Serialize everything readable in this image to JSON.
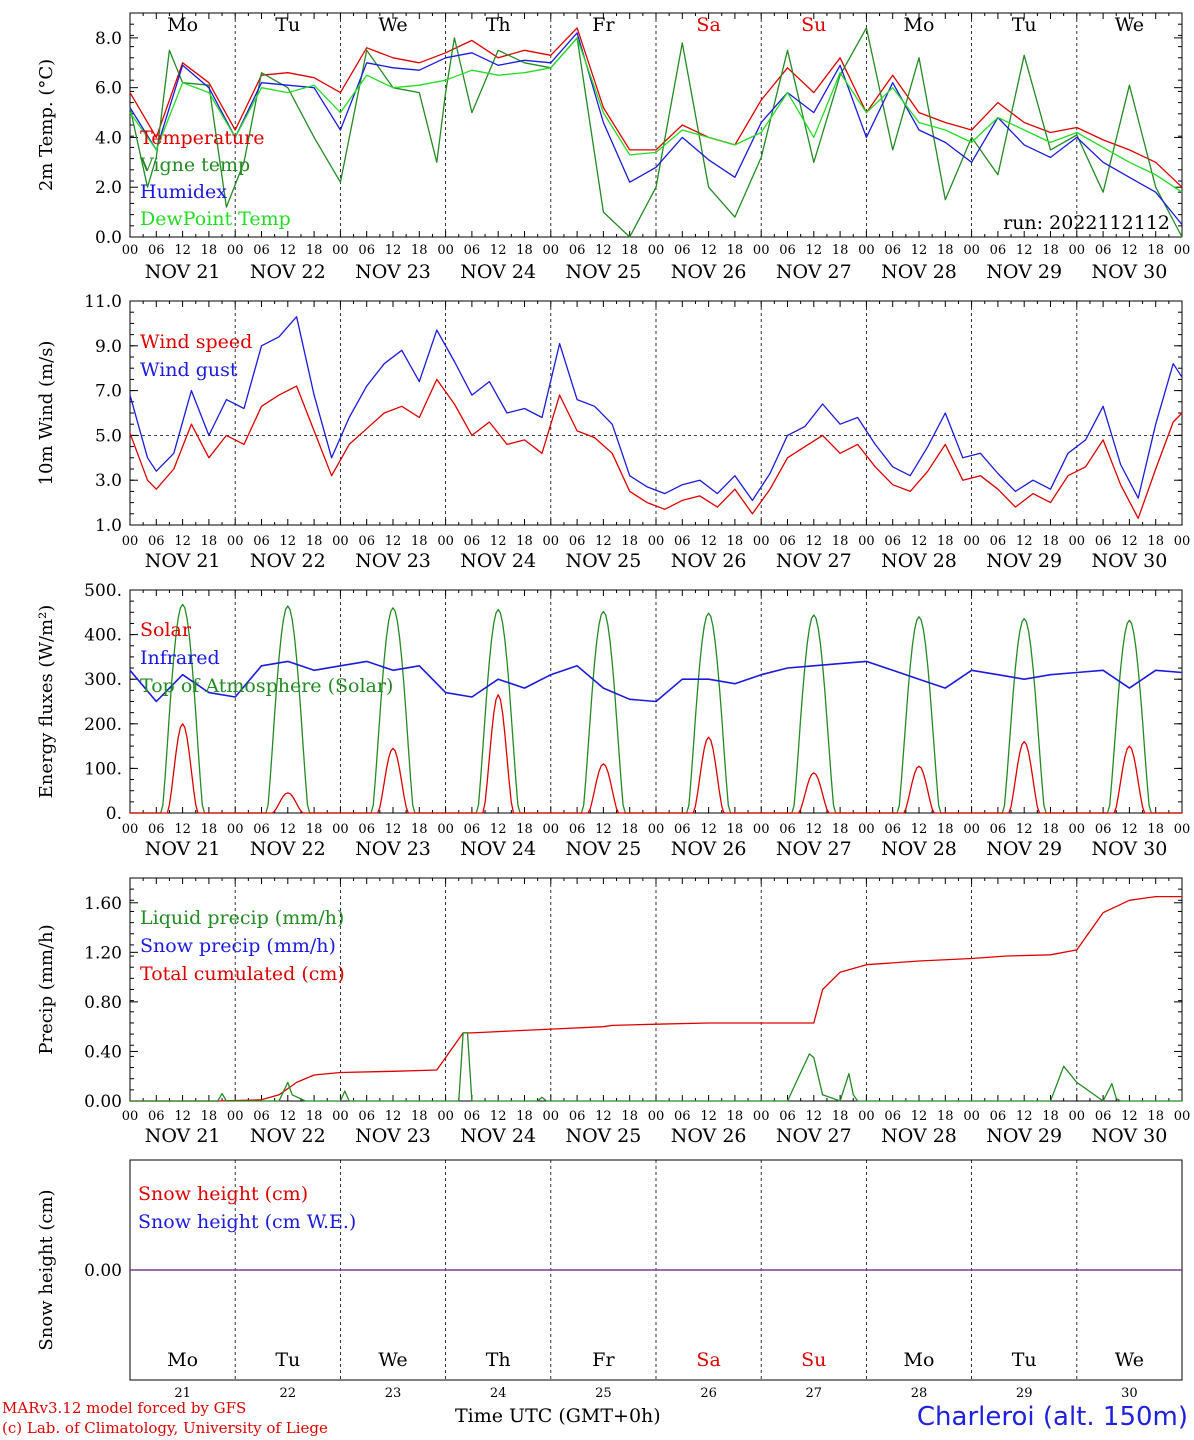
{
  "days": {
    "abbr": [
      "Mo",
      "Tu",
      "We",
      "Th",
      "Fr",
      "Sa",
      "Su",
      "Mo",
      "Tu",
      "We"
    ],
    "weekend": [
      false,
      false,
      false,
      false,
      false,
      true,
      true,
      false,
      false,
      false
    ],
    "dates": [
      "NOV 21",
      "NOV 22",
      "NOV 23",
      "NOV 24",
      "NOV 25",
      "NOV 26",
      "NOV 27",
      "NOV 28",
      "NOV 29",
      "NOV 30"
    ],
    "numbers": [
      "21",
      "22",
      "23",
      "24",
      "25",
      "26",
      "27",
      "28",
      "29",
      "30"
    ],
    "hour_ticks": [
      "00",
      "06",
      "12",
      "18"
    ]
  },
  "colors": {
    "red": "#e00000",
    "green": "#228b22",
    "blue": "#1a1ae0",
    "lightgreen": "#22dd22",
    "purple": "#7a3a9a",
    "weekend": "#e00000"
  },
  "run_label": "run: 2022112112",
  "footer": {
    "model": "MARv3.12 model forced by GFS",
    "copyright": "(c) Lab. of Climatology, University of Liege",
    "time_axis": "Time UTC (GMT+0h)",
    "station": "Charleroi (alt. 150m)"
  },
  "chart_data": [
    {
      "type": "line",
      "ylabel": "2m Temp. (°C)",
      "ylim": [
        0,
        9
      ],
      "yticks": [
        "0.0",
        "2.0",
        "4.0",
        "6.0",
        "8.0"
      ],
      "x_unit": "hours since NOV 21 00 UTC",
      "legend": [
        "Temperature",
        "Vigne temp",
        "Humidex",
        "DewPoint Temp"
      ],
      "series": [
        {
          "name": "Temperature",
          "color": "red",
          "x": [
            0,
            6,
            12,
            18,
            24,
            30,
            36,
            42,
            48,
            54,
            60,
            66,
            72,
            78,
            84,
            90,
            96,
            102,
            108,
            114,
            120,
            126,
            132,
            138,
            144,
            150,
            156,
            162,
            168,
            174,
            180,
            186,
            192,
            198,
            204,
            210,
            216,
            222,
            228,
            234,
            240
          ],
          "y": [
            5.8,
            4.0,
            7.0,
            6.2,
            4.3,
            6.5,
            6.6,
            6.4,
            5.8,
            7.6,
            7.2,
            7.0,
            7.4,
            7.9,
            7.2,
            7.5,
            7.3,
            8.4,
            5.2,
            3.5,
            3.5,
            4.5,
            4.0,
            3.7,
            5.5,
            6.8,
            5.8,
            7.2,
            5.0,
            6.5,
            5.0,
            4.6,
            4.3,
            5.4,
            4.6,
            4.2,
            4.4,
            3.9,
            3.5,
            3.0,
            2.0
          ]
        },
        {
          "name": "Vigne temp",
          "color": "green",
          "x": [
            0,
            4,
            6,
            9,
            12,
            18,
            22,
            26,
            30,
            36,
            42,
            48,
            54,
            60,
            66,
            70,
            72,
            74,
            78,
            84,
            90,
            96,
            102,
            108,
            114,
            120,
            126,
            132,
            138,
            144,
            150,
            156,
            162,
            168,
            174,
            180,
            186,
            192,
            198,
            204,
            210,
            216,
            222,
            228,
            234,
            240
          ],
          "y": [
            5.2,
            2.0,
            3.2,
            7.5,
            6.2,
            6.1,
            1.2,
            3.0,
            6.6,
            6.0,
            4.0,
            2.2,
            7.5,
            6.0,
            5.8,
            3.0,
            5.8,
            8.0,
            5.0,
            7.5,
            7.0,
            6.8,
            8.0,
            1.0,
            -0.5,
            2.0,
            7.8,
            2.0,
            0.8,
            3.2,
            7.5,
            3.0,
            6.5,
            8.4,
            3.5,
            7.2,
            1.5,
            4.0,
            2.5,
            7.3,
            3.5,
            4.1,
            1.8,
            6.1,
            2.0,
            0.0
          ]
        },
        {
          "name": "Humidex",
          "color": "blue",
          "x": [
            0,
            6,
            12,
            18,
            24,
            30,
            36,
            42,
            48,
            54,
            60,
            66,
            72,
            78,
            84,
            90,
            96,
            102,
            108,
            114,
            120,
            126,
            132,
            138,
            144,
            150,
            156,
            162,
            168,
            174,
            180,
            186,
            192,
            198,
            204,
            210,
            216,
            222,
            228,
            234,
            240
          ],
          "y": [
            5.2,
            3.5,
            6.9,
            6.0,
            4.0,
            6.2,
            6.1,
            6.0,
            4.3,
            7.0,
            6.8,
            6.7,
            7.2,
            7.4,
            6.9,
            7.1,
            7.0,
            8.2,
            4.6,
            2.2,
            2.8,
            4.0,
            3.1,
            2.4,
            4.6,
            5.8,
            5.0,
            6.9,
            4.0,
            6.2,
            4.3,
            3.8,
            3.0,
            4.8,
            3.7,
            3.2,
            4.0,
            3.0,
            2.4,
            1.8,
            0.5
          ]
        },
        {
          "name": "DewPoint Temp",
          "color": "lightgreen",
          "x": [
            0,
            6,
            12,
            18,
            24,
            30,
            36,
            42,
            48,
            54,
            60,
            66,
            72,
            78,
            84,
            90,
            96,
            102,
            108,
            114,
            120,
            126,
            132,
            138,
            144,
            150,
            156,
            162,
            168,
            174,
            180,
            186,
            192,
            198,
            204,
            210,
            216,
            222,
            228,
            234,
            240
          ],
          "y": [
            5.0,
            3.5,
            6.2,
            5.8,
            4.0,
            6.0,
            5.8,
            6.1,
            5.0,
            6.5,
            6.0,
            6.1,
            6.3,
            6.7,
            6.5,
            6.6,
            6.8,
            8.0,
            5.0,
            3.3,
            3.4,
            4.3,
            4.0,
            3.7,
            4.2,
            5.8,
            4.0,
            6.6,
            5.0,
            6.0,
            4.6,
            4.3,
            3.8,
            4.8,
            4.3,
            3.8,
            4.2,
            3.6,
            3.0,
            2.5,
            1.8
          ]
        }
      ]
    },
    {
      "type": "line",
      "ylabel": "10m Wind (m/s)",
      "ylim": [
        1,
        11
      ],
      "yticks": [
        "1.0",
        "3.0",
        "5.0",
        "7.0",
        "9.0",
        "11.0"
      ],
      "reference_line": 5.0,
      "legend": [
        "Wind speed",
        "Wind gust"
      ],
      "series": [
        {
          "name": "Wind speed",
          "color": "red",
          "x": [
            0,
            4,
            6,
            10,
            14,
            18,
            22,
            26,
            30,
            34,
            38,
            42,
            46,
            50,
            54,
            58,
            62,
            66,
            70,
            74,
            78,
            82,
            86,
            90,
            94,
            98,
            102,
            106,
            110,
            114,
            118,
            122,
            126,
            130,
            134,
            138,
            142,
            146,
            150,
            154,
            158,
            162,
            166,
            170,
            174,
            178,
            182,
            186,
            190,
            194,
            198,
            202,
            206,
            210,
            214,
            218,
            222,
            226,
            230,
            234,
            238,
            240
          ],
          "y": [
            5.1,
            3.0,
            2.6,
            3.5,
            5.5,
            4.0,
            5.0,
            4.6,
            6.3,
            6.8,
            7.2,
            5.2,
            3.2,
            4.6,
            5.3,
            6.0,
            6.3,
            5.8,
            7.5,
            6.4,
            5.0,
            5.6,
            4.6,
            4.8,
            4.2,
            6.8,
            5.2,
            4.9,
            4.2,
            2.5,
            2.0,
            1.7,
            2.1,
            2.3,
            1.8,
            2.6,
            1.5,
            2.6,
            4.0,
            4.5,
            5.0,
            4.2,
            4.6,
            3.6,
            2.8,
            2.5,
            3.4,
            4.6,
            3.0,
            3.2,
            2.6,
            1.8,
            2.4,
            2.0,
            3.2,
            3.6,
            4.8,
            2.8,
            1.3,
            3.5,
            5.6,
            6.0
          ]
        },
        {
          "name": "Wind gust",
          "color": "blue",
          "x": [
            0,
            4,
            6,
            10,
            14,
            18,
            22,
            26,
            30,
            34,
            38,
            42,
            46,
            50,
            54,
            58,
            62,
            66,
            70,
            74,
            78,
            82,
            86,
            90,
            94,
            98,
            102,
            106,
            110,
            114,
            118,
            122,
            126,
            130,
            134,
            138,
            142,
            146,
            150,
            154,
            158,
            162,
            166,
            170,
            174,
            178,
            182,
            186,
            190,
            194,
            198,
            202,
            206,
            210,
            214,
            218,
            222,
            226,
            230,
            234,
            238,
            240
          ],
          "y": [
            6.8,
            4.0,
            3.4,
            4.2,
            7.0,
            5.0,
            6.6,
            6.2,
            9.0,
            9.4,
            10.3,
            6.8,
            4.0,
            5.8,
            7.2,
            8.2,
            8.8,
            7.4,
            9.7,
            8.3,
            6.8,
            7.4,
            6.0,
            6.2,
            5.8,
            9.1,
            6.6,
            6.3,
            5.5,
            3.2,
            2.7,
            2.4,
            2.8,
            3.0,
            2.4,
            3.2,
            2.1,
            3.3,
            5.0,
            5.4,
            6.4,
            5.5,
            5.8,
            4.6,
            3.6,
            3.2,
            4.5,
            6.0,
            4.0,
            4.2,
            3.3,
            2.5,
            3.0,
            2.6,
            4.2,
            4.8,
            6.3,
            3.7,
            2.2,
            5.5,
            8.2,
            7.6
          ]
        }
      ]
    },
    {
      "type": "line",
      "ylabel": "Energy fluxes (W/m²)",
      "ylim": [
        0,
        500
      ],
      "yticks": [
        "0.",
        "100.",
        "200.",
        "300.",
        "400.",
        "500."
      ],
      "legend": [
        "Solar",
        "Infrared",
        "Top of Atmosphere (Solar)"
      ],
      "toa_peaks": [
        468,
        464,
        460,
        456,
        452,
        448,
        444,
        440,
        436,
        432
      ],
      "solar_peaks": [
        200,
        45,
        145,
        265,
        110,
        170,
        90,
        105,
        160,
        150
      ],
      "series": [
        {
          "name": "Infrared",
          "color": "blue",
          "x": [
            0,
            6,
            12,
            18,
            24,
            30,
            36,
            42,
            48,
            54,
            60,
            66,
            72,
            78,
            84,
            90,
            96,
            102,
            108,
            114,
            120,
            126,
            132,
            138,
            144,
            150,
            156,
            162,
            168,
            174,
            180,
            186,
            192,
            198,
            204,
            210,
            216,
            222,
            228,
            234,
            240
          ],
          "y": [
            320,
            250,
            310,
            270,
            260,
            330,
            340,
            320,
            330,
            340,
            320,
            330,
            270,
            260,
            300,
            280,
            310,
            330,
            280,
            255,
            250,
            300,
            300,
            290,
            310,
            325,
            330,
            335,
            340,
            320,
            300,
            280,
            320,
            310,
            300,
            310,
            315,
            320,
            280,
            320,
            315
          ]
        }
      ]
    },
    {
      "type": "line",
      "ylabel": "Precip (mm/h)",
      "ylim": [
        0,
        1.8
      ],
      "yticks": [
        "0.00",
        "0.40",
        "0.80",
        "1.20",
        "1.60"
      ],
      "legend": [
        "Liquid precip (mm/h)",
        "Snow precip (mm/h)",
        "Total cumulated (cm)"
      ],
      "series": [
        {
          "name": "Total cumulated (cm)",
          "color": "red",
          "x": [
            0,
            20,
            30,
            34,
            38,
            42,
            48,
            60,
            70,
            76,
            78,
            84,
            96,
            108,
            110,
            120,
            132,
            144,
            150,
            156,
            158,
            162,
            168,
            180,
            192,
            200,
            210,
            216,
            222,
            228,
            234,
            240
          ],
          "y": [
            0,
            0,
            0.01,
            0.05,
            0.15,
            0.21,
            0.23,
            0.24,
            0.25,
            0.55,
            0.55,
            0.56,
            0.58,
            0.6,
            0.61,
            0.62,
            0.63,
            0.63,
            0.63,
            0.63,
            0.9,
            1.04,
            1.1,
            1.13,
            1.15,
            1.17,
            1.18,
            1.22,
            1.52,
            1.62,
            1.65,
            1.65
          ]
        },
        {
          "name": "Liquid precip (mm/h)",
          "color": "green",
          "x": [
            0,
            20,
            21,
            22,
            34,
            36,
            37,
            40,
            48,
            49,
            50,
            75,
            76,
            77,
            78,
            93,
            94,
            95,
            108,
            150,
            155,
            156,
            158,
            162,
            164,
            165,
            166,
            210,
            213,
            216,
            222,
            224,
            225,
            226,
            240
          ],
          "y": [
            0,
            0,
            0.06,
            0,
            0,
            0.15,
            0.05,
            0,
            0,
            0.08,
            0,
            0,
            0.55,
            0.55,
            0,
            0,
            0.03,
            0,
            0,
            0,
            0.38,
            0.35,
            0.05,
            0,
            0.22,
            0.05,
            0,
            0,
            0.28,
            0.15,
            0,
            0.14,
            0.02,
            0,
            0
          ]
        }
      ]
    },
    {
      "type": "line",
      "ylabel": "Snow height (cm)",
      "ylim": [
        -1,
        1
      ],
      "yticks": [
        "0.00"
      ],
      "legend": [
        "Snow height (cm)",
        "Snow height (cm W.E.)"
      ],
      "series": [
        {
          "name": "Snow height (cm)",
          "color": "purple",
          "x": [
            0,
            240
          ],
          "y": [
            0,
            0
          ]
        }
      ]
    }
  ]
}
